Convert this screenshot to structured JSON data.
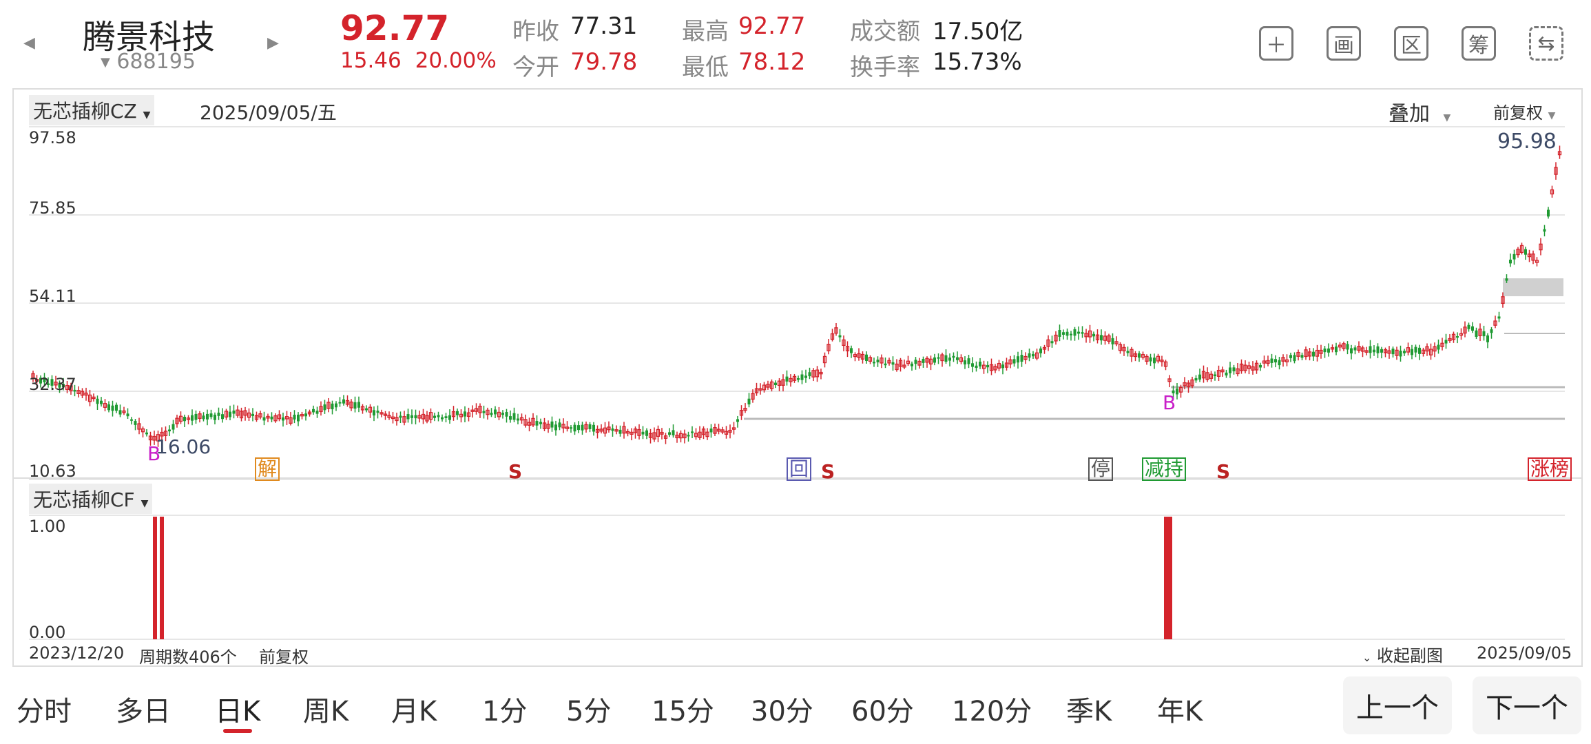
{
  "stock": {
    "name": "腾景科技",
    "code": "688195",
    "price": "92.77",
    "change": "15.46",
    "change_pct": "20.00%"
  },
  "quote": {
    "prev_close_label": "昨收",
    "prev_close": "77.31",
    "open_label": "今开",
    "open": "79.78",
    "high_label": "最高",
    "high": "92.77",
    "low_label": "最低",
    "low": "78.12",
    "amount_label": "成交额",
    "amount": "17.50亿",
    "turnover_label": "换手率",
    "turnover": "15.73%"
  },
  "toolbar_icons": [
    "plus-icon",
    "draw-icon",
    "range-icon",
    "chip-icon",
    "switch-device-icon"
  ],
  "toolbar_glyphs": {
    "plus": "＋",
    "draw": "画",
    "range": "区",
    "chip": "筹",
    "switch": "⇆"
  },
  "main_chart": {
    "indicator": "无芯插柳CZ",
    "date": "2025/09/05/五",
    "overlay": "叠加",
    "adjust": "前复权",
    "y_ticks": [
      "97.58",
      "75.85",
      "54.11",
      "32.37",
      "10.63"
    ],
    "high_label": "95.98",
    "low_label": "16.06",
    "markers": [
      "解",
      "S",
      "回",
      "S",
      "停",
      "减持",
      "S",
      "涨榜"
    ],
    "signal_b": "B"
  },
  "sub_chart": {
    "indicator": "无芯插柳CF",
    "y_ticks": [
      "1.00",
      "0.00"
    ],
    "start_date": "2023/12/20",
    "periods": "周期数406个",
    "adjust": "前复权",
    "collapse": "收起副图",
    "end_date": "2025/09/05"
  },
  "colors": {
    "up": "#d4232b",
    "down": "#1f9a32",
    "accent": "#d4232b"
  },
  "tabs": [
    "分时",
    "多日",
    "日K",
    "周K",
    "月K",
    "1分",
    "5分",
    "15分",
    "30分",
    "60分",
    "120分",
    "季K",
    "年K"
  ],
  "active_tab": "日K",
  "nav": {
    "prev": "上一个",
    "next": "下一个"
  }
}
